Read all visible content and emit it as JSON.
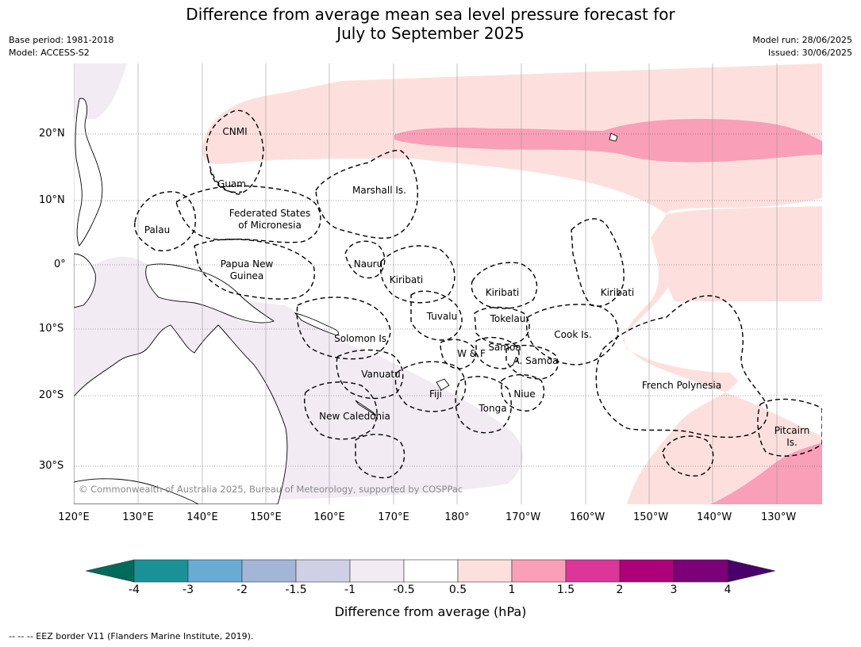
{
  "title_line1": "Difference from average mean sea level pressure forecast for",
  "title_line2": "July to September 2025",
  "base_period": "Base period: 1981-2018",
  "model": "Model: ACCESS-S2",
  "model_run": "Model run: 28/06/2025",
  "issued": "Issued: 30/06/2025",
  "copyright": "© Commonwealth of Australia 2025, Bureau of Meteorology, supported by COSPPac",
  "footer": "--  --  -- EEZ border V11 (Flanders Marine Institute, 2019).",
  "colorbar": {
    "label": "Difference from average (hPa)",
    "ticks": [
      "-4",
      "-3",
      "-2",
      "-1.5",
      "-1",
      "-0.5",
      "0.5",
      "1",
      "1.5",
      "2",
      "3",
      "4"
    ],
    "colors": [
      "#006b5b",
      "#1a9197",
      "#68abd5",
      "#a3b6d8",
      "#cfd0e6",
      "#f2ebf4",
      "#ffffff",
      "#fde0de",
      "#f99fb7",
      "#dc369b",
      "#ae0079",
      "#7c0078",
      "#4a006a"
    ]
  },
  "lat_labels": [
    "20°N",
    "10°N",
    "0°",
    "10°S",
    "20°S",
    "30°S"
  ],
  "lon_labels": [
    "120°E",
    "130°E",
    "140°E",
    "150°E",
    "160°E",
    "170°E",
    "180°",
    "170°W",
    "160°W",
    "150°W",
    "140°W",
    "130°W"
  ],
  "places": {
    "cnmi": "CNMI",
    "guam": "Guam",
    "marshall": "Marshall Is.",
    "fsm1": "Federated States",
    "fsm2": "of Micronesia",
    "palau": "Palau",
    "png1": "Papua New",
    "png2": "Guinea",
    "nauru": "Nauru",
    "kiribati_w": "Kiribati",
    "kiribati_c": "Kiribati",
    "kiribati_e": "Kiribati",
    "tuvalu": "Tuvalu",
    "tokelau": "Tokelau",
    "cook": "Cook Is.",
    "solomon": "Solomon Is.",
    "samoa": "Samoa",
    "wf": "W & F",
    "asamoa": "A. Samoa",
    "vanuatu": "Vanuatu",
    "fiji": "Fiji",
    "niue": "Niue",
    "tonga": "Tonga",
    "fp": "French Polynesia",
    "newcal": "New Caledonia",
    "pitcairn1": "Pitcairn",
    "pitcairn2": "Is."
  }
}
